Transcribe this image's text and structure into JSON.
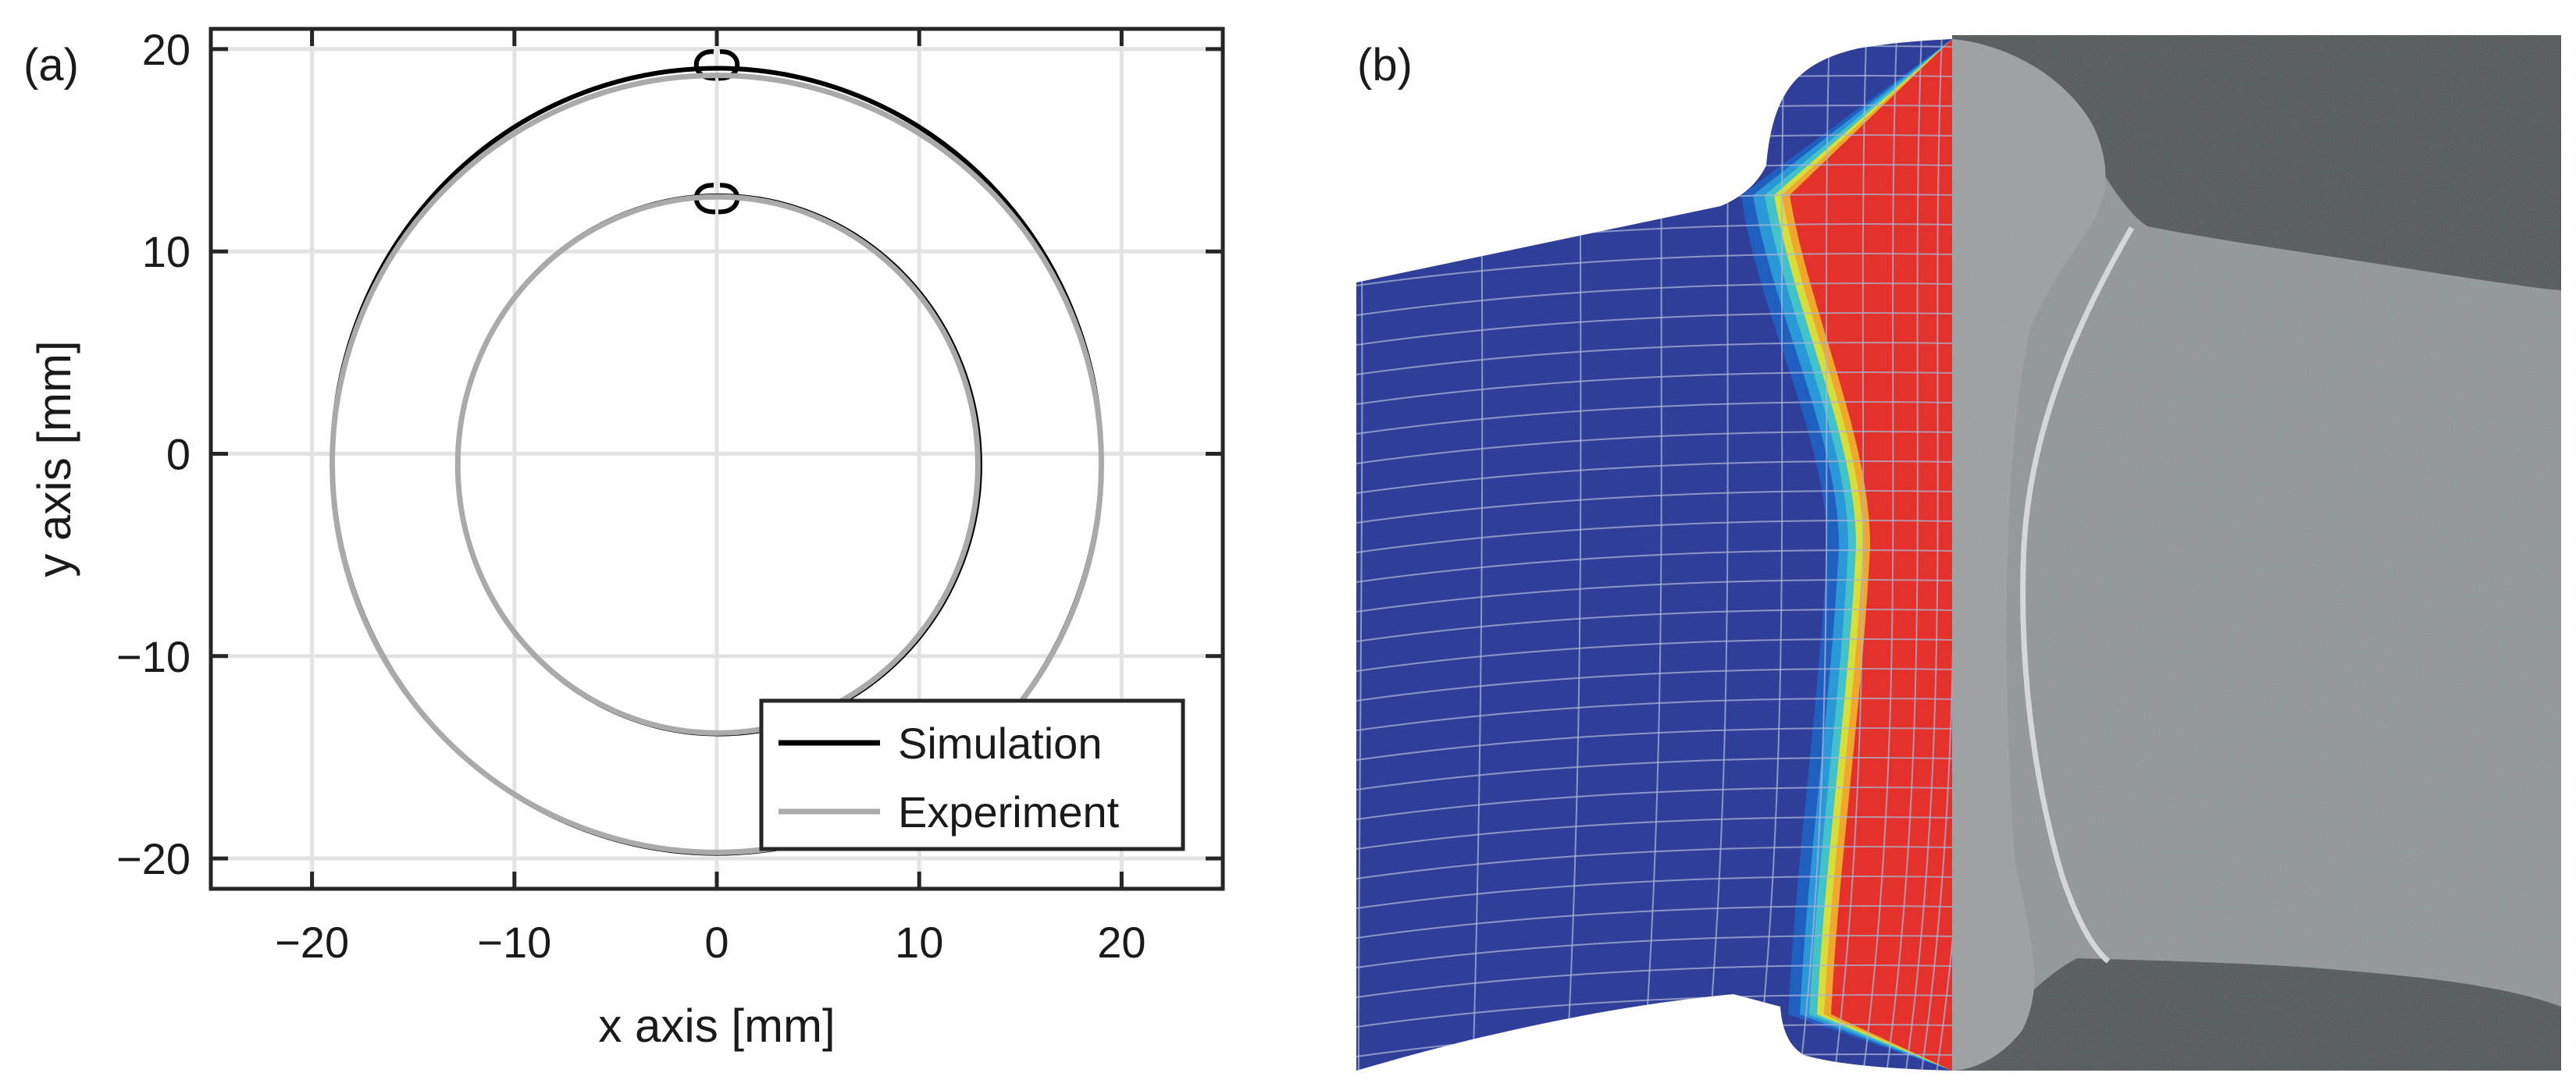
{
  "panel_a": {
    "label": "(a)"
  },
  "panel_b": {
    "label": "(b)",
    "description_colors": {
      "base": "#2f3e99",
      "hot": "#e5312b",
      "transition": [
        "#1f5fbf",
        "#2a97d6",
        "#43c2c9",
        "#d7de3a",
        "#f2a630"
      ],
      "photo_bg": "#4c5152",
      "photo_metal": "#8f9496"
    }
  },
  "chart_data": {
    "type": "line",
    "title": "",
    "xlabel": "x axis [mm]",
    "ylabel": "y axis [mm]",
    "xlim": [
      -25,
      25
    ],
    "ylim": [
      -21.5,
      21
    ],
    "xticks": [
      -20,
      -10,
      0,
      10,
      20
    ],
    "yticks": [
      -20,
      -10,
      0,
      10,
      20
    ],
    "xtick_labels": [
      "−20",
      "−10",
      "0",
      "10",
      "20"
    ],
    "ytick_labels": [
      "−20",
      "−10",
      "0",
      "10",
      "20"
    ],
    "grid": true,
    "legend_position": "bottom-right",
    "series": [
      {
        "name": "Simulation",
        "color": "#000000",
        "rings": [
          {
            "name": "outer",
            "cx": 0,
            "cy": -0.35,
            "rx": 19.0,
            "ry": 19.4
          },
          {
            "name": "inner",
            "cx": 0.1,
            "cy": -0.55,
            "rx": 12.9,
            "ry": 13.3
          }
        ],
        "lobes": [
          {
            "name": "outer-top",
            "x": 0,
            "y": 19.1
          },
          {
            "name": "inner-top",
            "x": 0,
            "y": 12.5
          }
        ]
      },
      {
        "name": "Experiment",
        "color": "#aaaaaa",
        "rings": [
          {
            "name": "outer",
            "cx": 0,
            "cy": -0.5,
            "rx": 19.0,
            "ry": 19.2
          },
          {
            "name": "inner",
            "cx": 0.05,
            "cy": -0.55,
            "rx": 12.85,
            "ry": 13.25
          }
        ]
      }
    ]
  }
}
